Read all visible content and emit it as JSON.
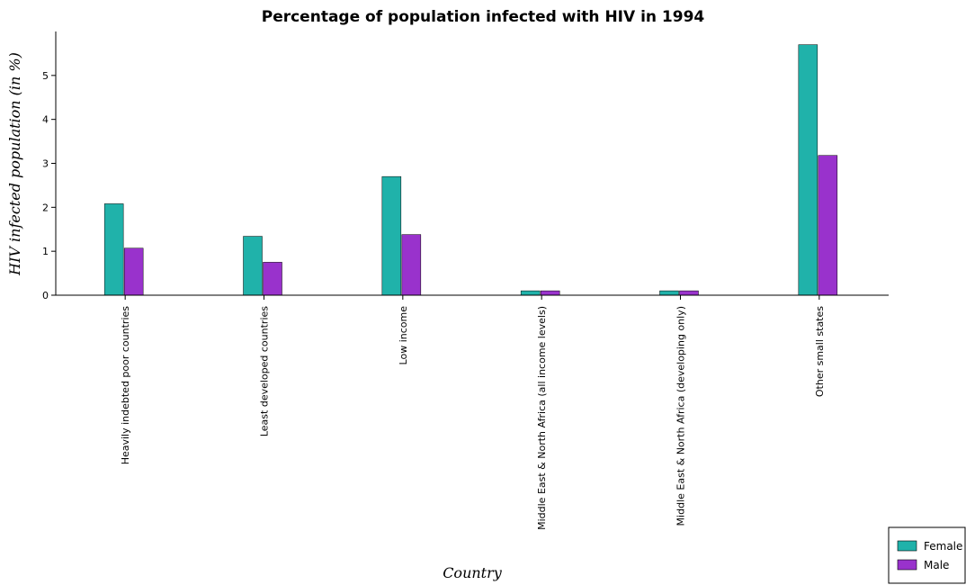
{
  "colors": {
    "female": "#20b2aa",
    "male": "#9932cc"
  },
  "chart_data": {
    "type": "bar",
    "title": "Percentage of population infected with HIV in 1994",
    "xlabel": "Country",
    "ylabel": "HIV infected population (in %)",
    "ylim": [
      0,
      6.0
    ],
    "yticks": [
      "0",
      "1",
      "2",
      "3",
      "4",
      "5"
    ],
    "grid": false,
    "legend_position": "bottom-right",
    "categories": [
      "Heavily indebted poor countries",
      "Least developed countries",
      "Low income",
      "Middle East & North Africa (all income levels)",
      "Middle East & North Africa (developing only)",
      "Other small states"
    ],
    "series": [
      {
        "name": "Female",
        "values": [
          2.08,
          1.34,
          2.7,
          0.1,
          0.1,
          5.7
        ]
      },
      {
        "name": "Male",
        "values": [
          1.07,
          0.75,
          1.38,
          0.1,
          0.1,
          3.18
        ]
      }
    ]
  }
}
